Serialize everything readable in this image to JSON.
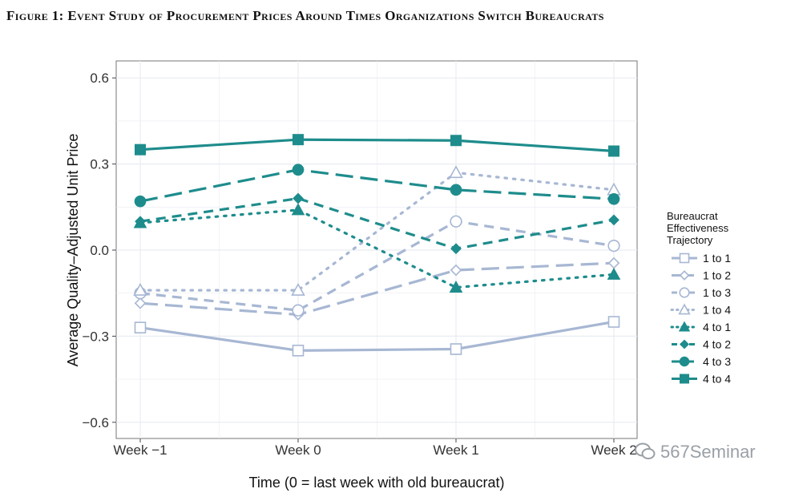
{
  "figure_title": "Figure 1: Event Study of Procurement Prices Around Times Organizations Switch Bureaucrats",
  "watermark": "567Seminar",
  "colors": {
    "light": "#a7b7d3",
    "dark": "#1e8c8c",
    "grid": "#e9ecf2",
    "axis": "#444444"
  },
  "chart_data": {
    "type": "line",
    "title": "",
    "xlabel": "Time (0 = last week with old bureaucrat)",
    "ylabel": "Average Quality–Adjusted Unit Price",
    "categories": [
      "Week −1",
      "Week 0",
      "Week 1",
      "Week 2"
    ],
    "ylim": [
      -0.66,
      0.66
    ],
    "yticks": [
      -0.6,
      -0.3,
      0.0,
      0.3,
      0.6
    ],
    "ytick_labels": [
      "−0.6",
      "−0.3",
      "0.0",
      "0.3",
      "0.6"
    ],
    "grid": true,
    "legend": {
      "title_lines": [
        "Bureaucrat",
        "Effectiveness",
        "Trajectory"
      ],
      "position": "right"
    },
    "series": [
      {
        "name": "1 to 1",
        "values": [
          -0.27,
          -0.35,
          -0.345,
          -0.25
        ],
        "color": "light",
        "dash": "solid",
        "marker": "square-open"
      },
      {
        "name": "1 to 2",
        "values": [
          -0.185,
          -0.225,
          -0.07,
          -0.045
        ],
        "color": "light",
        "dash": "longdash",
        "marker": "diamond-open"
      },
      {
        "name": "1 to 3",
        "values": [
          -0.15,
          -0.21,
          0.1,
          0.015
        ],
        "color": "light",
        "dash": "dash",
        "marker": "circle-open"
      },
      {
        "name": "1 to 4",
        "values": [
          -0.14,
          -0.14,
          0.27,
          0.21
        ],
        "color": "light",
        "dash": "dot",
        "marker": "triangle-open"
      },
      {
        "name": "4 to 1",
        "values": [
          0.095,
          0.14,
          -0.13,
          -0.085
        ],
        "color": "dark",
        "dash": "dot",
        "marker": "triangle"
      },
      {
        "name": "4 to 2",
        "values": [
          0.1,
          0.18,
          0.005,
          0.105
        ],
        "color": "dark",
        "dash": "dash",
        "marker": "diamond"
      },
      {
        "name": "4 to 3",
        "values": [
          0.17,
          0.28,
          0.21,
          0.178
        ],
        "color": "dark",
        "dash": "longdash",
        "marker": "circle"
      },
      {
        "name": "4 to 4",
        "values": [
          0.35,
          0.385,
          0.382,
          0.345
        ],
        "color": "dark",
        "dash": "solid",
        "marker": "square"
      }
    ]
  }
}
